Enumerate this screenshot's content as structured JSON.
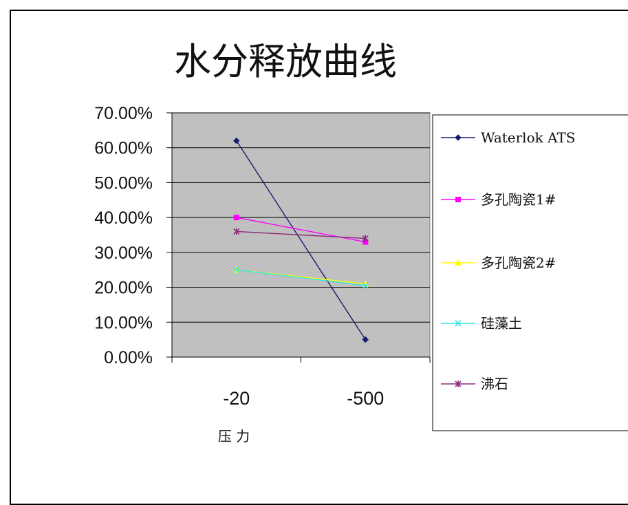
{
  "chart_data": {
    "type": "line",
    "title": "水分释放曲线",
    "xlabel": "压 力",
    "ylabel": "",
    "categories": [
      "-20",
      "-500"
    ],
    "ylim": [
      0,
      0.7
    ],
    "yticks": [
      "0.00%",
      "10.00%",
      "20.00%",
      "30.00%",
      "40.00%",
      "50.00%",
      "60.00%",
      "70.00%"
    ],
    "grid": true,
    "legend_position": "right",
    "series": [
      {
        "name": "Waterlok ATS",
        "values": [
          0.62,
          0.05
        ],
        "color": "#1a1a6e",
        "marker": "diamond"
      },
      {
        "name": "多孔陶瓷1#",
        "values": [
          0.4,
          0.33
        ],
        "color": "#ff00ff",
        "marker": "square"
      },
      {
        "name": "多孔陶瓷2#",
        "values": [
          0.25,
          0.21
        ],
        "color": "#ffff00",
        "marker": "triangle"
      },
      {
        "name": "硅藻土",
        "values": [
          0.25,
          0.205
        ],
        "color": "#33e5e5",
        "marker": "x"
      },
      {
        "name": "沸石",
        "values": [
          0.36,
          0.34
        ],
        "color": "#8a2a7a",
        "marker": "star"
      }
    ]
  }
}
